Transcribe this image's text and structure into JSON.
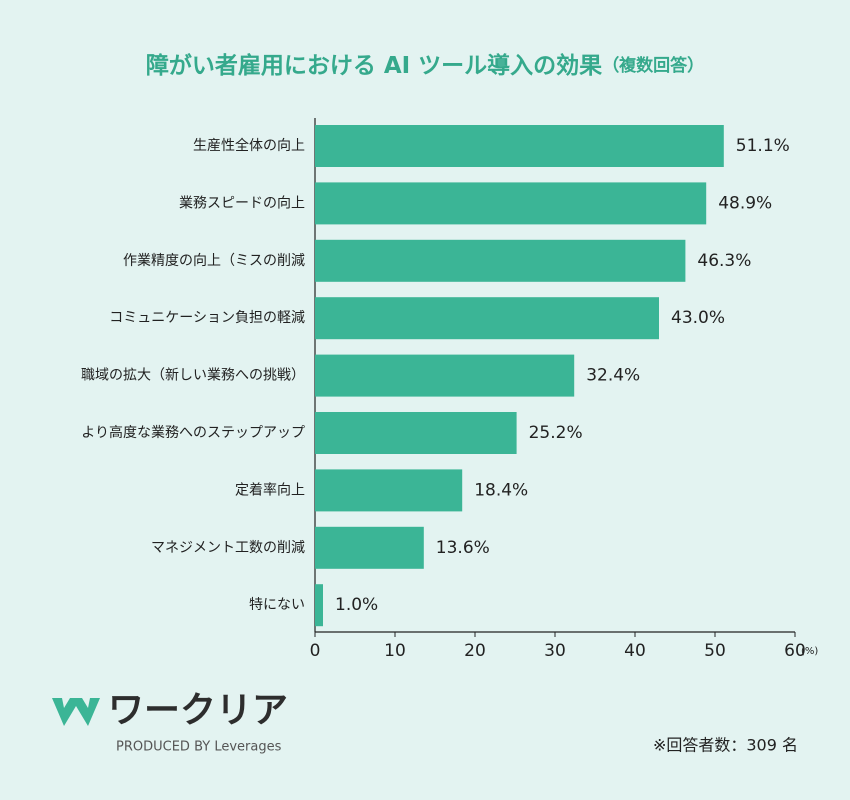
{
  "chart_data": {
    "type": "hbar",
    "title": "障がい者雇用における AI ツール導入の効果",
    "subtitle": "（複数回答）",
    "categories": [
      "生産性全体の向上",
      "業務スピードの向上",
      "作業精度の向上（ミスの削減",
      "コミュニケーション負担の軽減",
      "職域の拡大（新しい業務への挑戦）",
      "より高度な業務へのステップアップ",
      "定着率向上",
      "マネジメント工数の削減",
      "特にない"
    ],
    "values": [
      51.1,
      48.9,
      46.3,
      43.0,
      32.4,
      25.2,
      18.4,
      13.6,
      1.0
    ],
    "value_labels": [
      "51.1%",
      "48.9%",
      "46.3%",
      "43.0%",
      "32.4%",
      "25.2%",
      "18.4%",
      "13.6%",
      "1.0%"
    ],
    "color": "#3bb596",
    "xlim": [
      0,
      60
    ],
    "xticks": [
      0,
      10,
      20,
      30,
      40,
      50,
      60
    ],
    "x_unit": "(%)"
  },
  "logo": {
    "name": "ワークリア",
    "tagline": "PRODUCED BY Leverages"
  },
  "note": "※回答者数：309 名"
}
